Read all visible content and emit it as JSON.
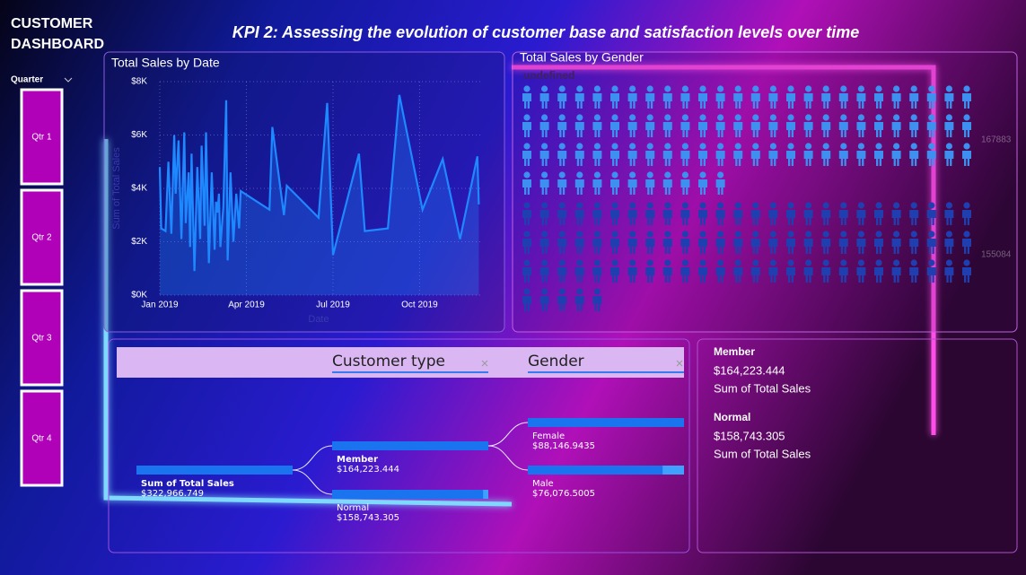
{
  "header": {
    "title": [
      "CUSTOMER",
      "DASHBOARD"
    ],
    "kpi": "KPI 2: Assessing the evolution of customer base and satisfaction levels over time"
  },
  "slicer": {
    "label": "Quarter",
    "items": [
      "Qtr 1",
      "Qtr 2",
      "Qtr 3",
      "Qtr 4"
    ]
  },
  "chart_data": [
    {
      "type": "line",
      "title": "Total Sales by Date",
      "x_label": "Date",
      "y_label": "Sum of Total Sales",
      "color": "#1e88ff",
      "x": [
        0.0,
        0.05,
        0.2,
        0.3,
        0.4,
        0.5,
        0.55,
        0.65,
        0.75,
        0.85,
        0.9,
        1.0,
        1.05,
        1.1,
        1.2,
        1.3,
        1.4,
        1.45,
        1.55,
        1.6,
        1.7,
        1.8,
        1.9,
        1.95,
        2.0,
        2.05,
        2.1,
        2.2,
        2.3,
        2.35,
        2.45,
        2.55,
        2.65,
        2.75,
        2.8,
        3.8,
        3.9,
        4.3,
        4.4,
        5.5,
        5.8,
        6.0,
        6.9,
        7.1,
        7.9,
        8.3,
        9.1,
        9.8,
        10.4,
        11.0,
        11.05
      ],
      "values": [
        4800,
        2500,
        2400,
        5000,
        2300,
        6000,
        3800,
        5800,
        2100,
        6100,
        2700,
        4600,
        1800,
        5300,
        900,
        4800,
        2100,
        5600,
        2600,
        6100,
        1200,
        4600,
        1700,
        3500,
        3100,
        3800,
        1800,
        3300,
        7300,
        1300,
        4600,
        2000,
        3800,
        2500,
        3900,
        3200,
        6300,
        3000,
        4100,
        2900,
        7200,
        1500,
        5300,
        2400,
        2500,
        7500,
        3200,
        5100,
        2100,
        5200,
        3400
      ],
      "xlim": [
        0,
        11.1
      ],
      "xticks": [
        {
          "value": 0,
          "label": "Jan 2019"
        },
        {
          "value": 3,
          "label": "Apr 2019"
        },
        {
          "value": 6,
          "label": "Jul 2019"
        },
        {
          "value": 9,
          "label": "Oct 2019"
        }
      ],
      "ylim": [
        0,
        8000
      ],
      "yticks": [
        {
          "value": 0,
          "label": "$0K"
        },
        {
          "value": 2000,
          "label": "$2K"
        },
        {
          "value": 4000,
          "label": "$4K"
        },
        {
          "value": 6000,
          "label": "$6K"
        },
        {
          "value": 8000,
          "label": "$8K"
        }
      ],
      "grid": true
    },
    {
      "type": "pictogram",
      "title": "Total Sales by Gender",
      "subtitle": "undefined",
      "values": [
        167883,
        155084
      ],
      "colors": [
        "#3d8ff0",
        "#1f3fb0"
      ]
    }
  ],
  "decomposition_tree": {
    "levels": [
      "Customer type",
      "Gender"
    ],
    "root": {
      "label": "Sum of Total Sales",
      "value": 322966.749,
      "value_label": "$322,966.749"
    },
    "level1": [
      {
        "label": "Member",
        "value": 164223.444,
        "value_label": "$164,223.444"
      },
      {
        "label": "Normal",
        "value": 158743.305,
        "value_label": "$158,743.305"
      }
    ],
    "level2": [
      {
        "label": "Female",
        "value": 88146.9435,
        "value_label": "$88,146.9435"
      },
      {
        "label": "Male",
        "value": 76076.5005,
        "value_label": "$76,076.5005"
      }
    ]
  },
  "cards": [
    {
      "title": "Member",
      "value": 164223.444,
      "value_label": "$164,223.444",
      "label": "Sum of Total Sales"
    },
    {
      "title": "Normal",
      "value": 158743.305,
      "value_label": "$158,743.305",
      "label": "Sum of Total Sales"
    }
  ]
}
